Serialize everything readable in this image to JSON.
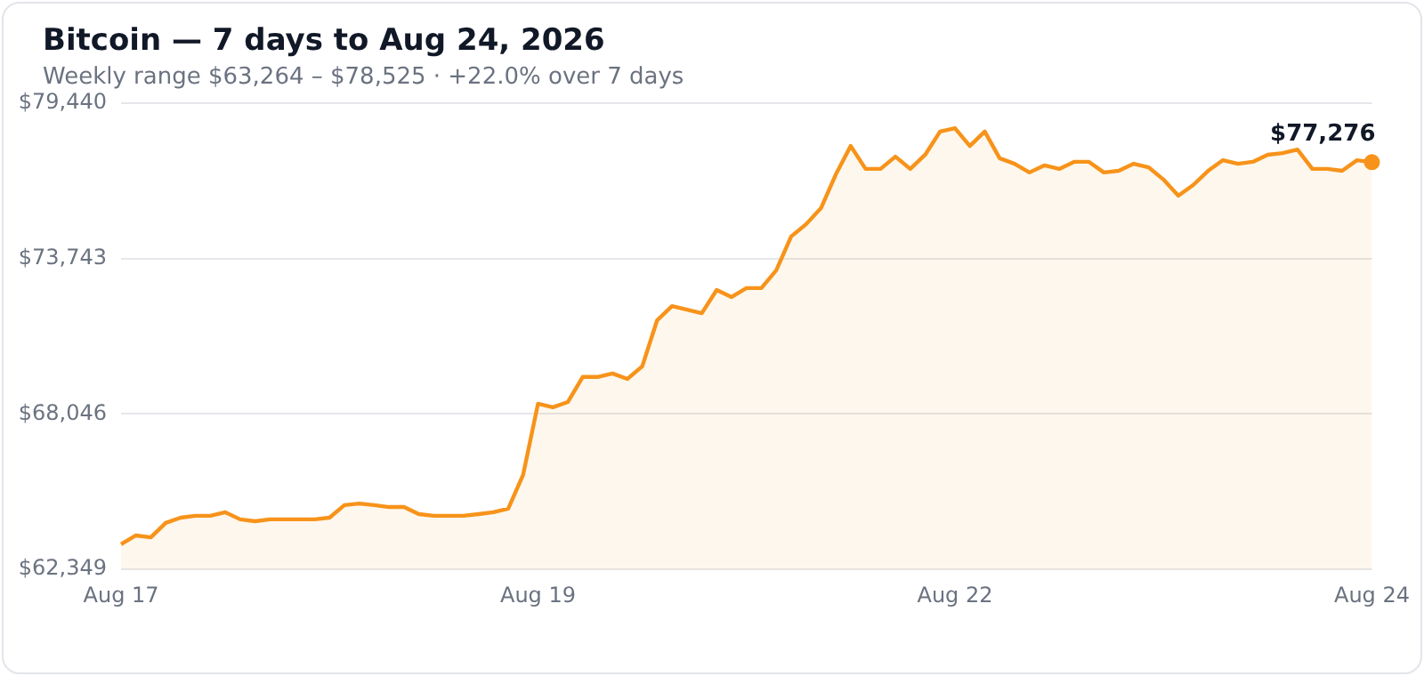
{
  "chart_data": {
    "type": "area",
    "title": "Bitcoin — 7 days to Aug 24, 2026",
    "subtitle": "Weekly range $63,264 – $78,525 · +22.0% over 7 days",
    "categories": [
      "Aug 17",
      null,
      null,
      null,
      null,
      null,
      null,
      null,
      null,
      null,
      null,
      null,
      null,
      null,
      null,
      null,
      null,
      null,
      null,
      null,
      null,
      null,
      null,
      null,
      null,
      null,
      null,
      null,
      "Aug 19",
      null,
      null,
      null,
      null,
      null,
      null,
      null,
      null,
      null,
      null,
      null,
      null,
      null,
      null,
      null,
      null,
      null,
      null,
      null,
      null,
      null,
      null,
      null,
      null,
      null,
      null,
      null,
      "Aug 22",
      null,
      null,
      null,
      null,
      null,
      null,
      null,
      null,
      null,
      null,
      null,
      null,
      null,
      null,
      null,
      null,
      null,
      null,
      null,
      null,
      null,
      null,
      null,
      null,
      null,
      null,
      null,
      "Aug 24"
    ],
    "series": [
      {
        "color": "#f7931a",
        "values": [
          63264,
          63590,
          63520,
          64050,
          64240,
          64310,
          64310,
          64440,
          64180,
          64110,
          64180,
          64180,
          64180,
          64180,
          64240,
          64700,
          64760,
          64700,
          64630,
          64630,
          64370,
          64310,
          64310,
          64310,
          64370,
          64440,
          64570,
          65810,
          68420,
          68290,
          68480,
          69400,
          69400,
          69530,
          69330,
          69790,
          71480,
          72000,
          71870,
          71740,
          72590,
          72330,
          72660,
          72660,
          73310,
          74550,
          75000,
          75590,
          76830,
          77870,
          77030,
          77030,
          77480,
          77030,
          77550,
          78400,
          78525,
          77870,
          78400,
          77420,
          77220,
          76900,
          77160,
          77030,
          77290,
          77290,
          76900,
          76960,
          77220,
          77090,
          76640,
          76050,
          76440,
          76960,
          77350,
          77220,
          77290,
          77550,
          77610,
          77740,
          77030,
          77030,
          76960,
          77350,
          77276
        ]
      }
    ],
    "ylim": [
      62349,
      79440
    ],
    "yticks": [
      {
        "value": 62349,
        "label": "$62,349"
      },
      {
        "value": 68046,
        "label": "$68,046"
      },
      {
        "value": 73743,
        "label": "$73,743"
      },
      {
        "value": 79440,
        "label": "$79,440"
      }
    ],
    "grid": "y",
    "annotations": [
      {
        "text": "$77,276",
        "x": "Aug 24",
        "y": 77276
      }
    ]
  }
}
